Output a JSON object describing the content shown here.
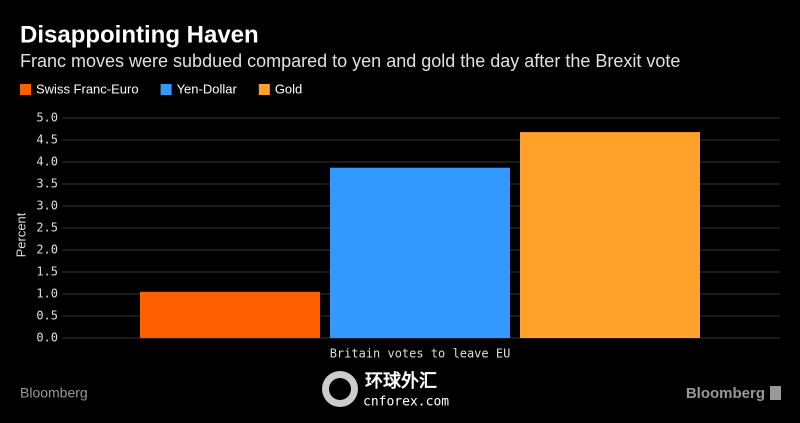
{
  "chart_data": {
    "type": "bar",
    "title": "Disappointing Haven",
    "subtitle": "Franc moves were subdued compared to yen and gold the day after the Brexit vote",
    "categories": [
      "Britain votes to leave EU"
    ],
    "series": [
      {
        "name": "Swiss Franc-Euro",
        "color": "#ff5f00",
        "values": [
          1.05
        ]
      },
      {
        "name": "Yen-Dollar",
        "color": "#3399ff",
        "values": [
          3.87
        ]
      },
      {
        "name": "Gold",
        "color": "#ffa12b",
        "values": [
          4.68
        ]
      }
    ],
    "ylabel": "Percent",
    "ylim": [
      0,
      5
    ],
    "yticks": [
      {
        "value": 0,
        "label": "0.0"
      },
      0.5,
      {
        "value": 1,
        "label": "1.0"
      },
      1.5,
      {
        "value": 2,
        "label": "2.0"
      },
      2.5,
      {
        "value": 3,
        "label": "3.0"
      },
      3.5,
      {
        "value": 4,
        "label": "4.0"
      },
      4.5,
      {
        "value": 5,
        "label": "5.0"
      }
    ],
    "grid": true,
    "source": "Bloomberg",
    "logo": "Bloomberg",
    "watermark": [
      "环球外汇",
      "cnforex.com"
    ]
  }
}
